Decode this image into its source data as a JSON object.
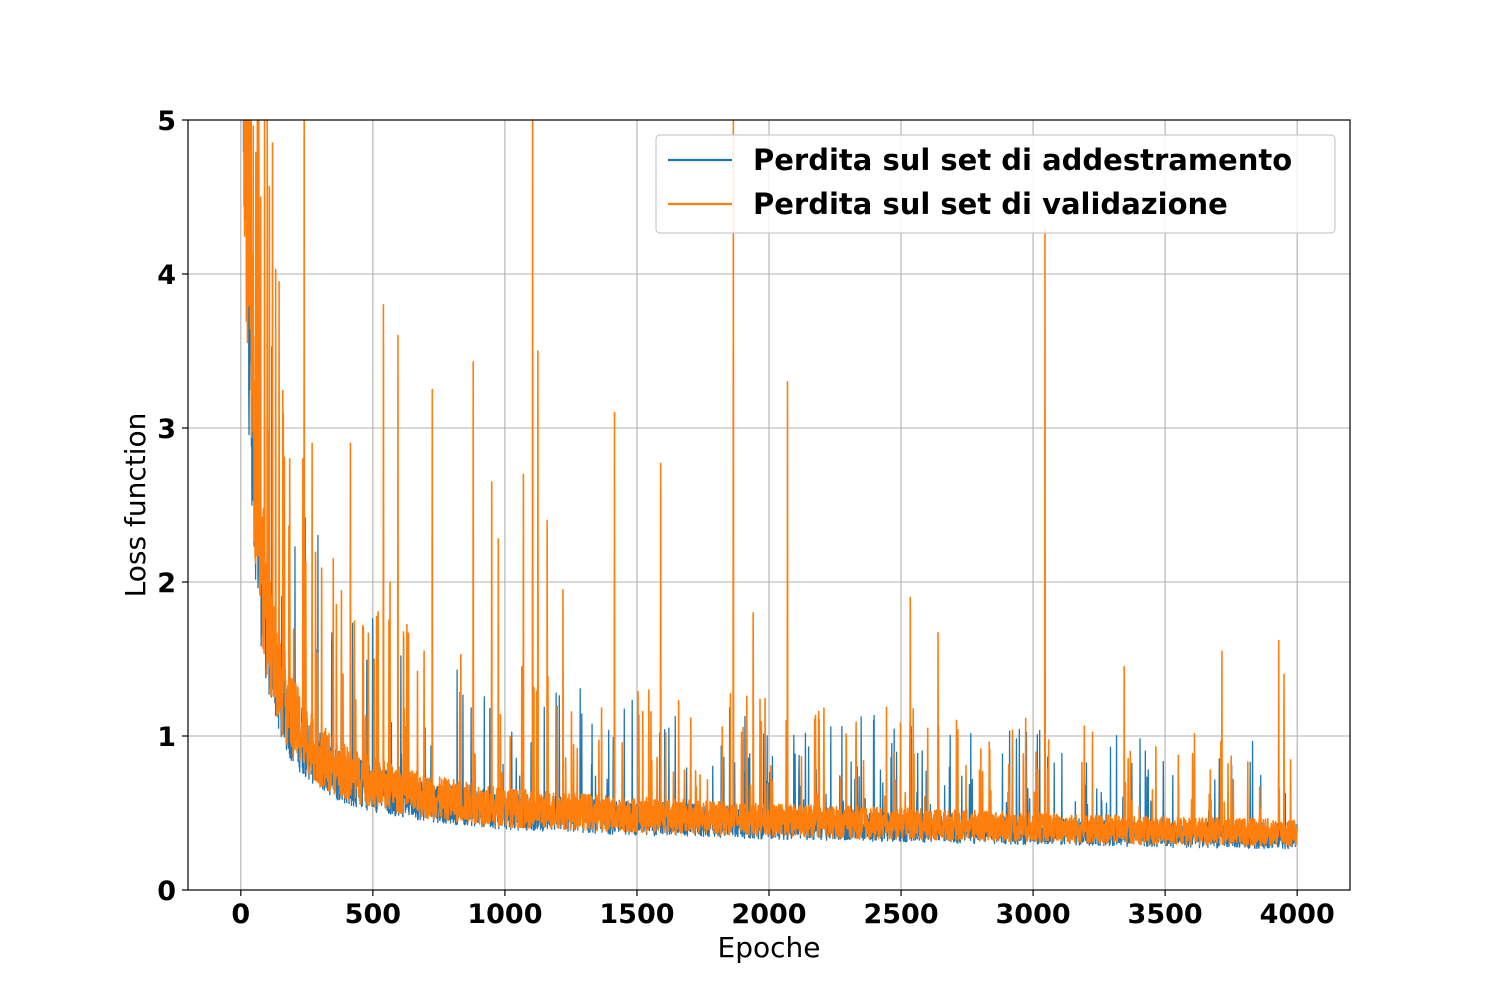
{
  "chart_data": {
    "type": "line",
    "title": "",
    "xlabel": "Epoche",
    "ylabel": "Loss function",
    "xlim": [
      -200,
      4200
    ],
    "ylim": [
      0,
      5
    ],
    "xticks": [
      0,
      500,
      1000,
      1500,
      2000,
      2500,
      3000,
      3500,
      4000
    ],
    "yticks": [
      0,
      1,
      2,
      3,
      4,
      5
    ],
    "grid": true,
    "legend_position": "upper right",
    "series": [
      {
        "name": "Perdita sul set di addestramento",
        "color": "#1f77b4",
        "x": [
          0,
          25,
          50,
          75,
          100,
          150,
          200,
          300,
          400,
          500,
          700,
          1000,
          1500,
          2000,
          2500,
          3000,
          3500,
          4000
        ],
        "y": [
          6.0,
          3.6,
          2.4,
          1.8,
          1.45,
          1.1,
          0.9,
          0.72,
          0.62,
          0.57,
          0.5,
          0.44,
          0.4,
          0.37,
          0.35,
          0.33,
          0.31,
          0.3
        ]
      },
      {
        "name": "Perdita sul set di validazione",
        "color": "#ff7f0e",
        "x": [
          0,
          25,
          50,
          75,
          100,
          150,
          200,
          300,
          400,
          500,
          700,
          1000,
          1500,
          2000,
          2500,
          3000,
          3500,
          4000
        ],
        "y": [
          6.0,
          3.7,
          2.5,
          1.9,
          1.5,
          1.15,
          0.95,
          0.75,
          0.65,
          0.6,
          0.52,
          0.46,
          0.42,
          0.39,
          0.37,
          0.35,
          0.33,
          0.32
        ],
        "spikes": [
          {
            "x": 10,
            "y": 5.0
          },
          {
            "x": 35,
            "y": 5.0
          },
          {
            "x": 60,
            "y": 4.2
          },
          {
            "x": 75,
            "y": 4.5
          },
          {
            "x": 90,
            "y": 5.0
          },
          {
            "x": 100,
            "y": 5.0
          },
          {
            "x": 120,
            "y": 4.85
          },
          {
            "x": 145,
            "y": 3.95
          },
          {
            "x": 185,
            "y": 2.8
          },
          {
            "x": 235,
            "y": 2.8
          },
          {
            "x": 240,
            "y": 5.0
          },
          {
            "x": 270,
            "y": 2.9
          },
          {
            "x": 350,
            "y": 2.15
          },
          {
            "x": 415,
            "y": 2.9
          },
          {
            "x": 540,
            "y": 3.8
          },
          {
            "x": 565,
            "y": 2.0
          },
          {
            "x": 595,
            "y": 3.6
          },
          {
            "x": 725,
            "y": 3.25
          },
          {
            "x": 880,
            "y": 3.43
          },
          {
            "x": 950,
            "y": 2.65
          },
          {
            "x": 975,
            "y": 2.28
          },
          {
            "x": 1070,
            "y": 2.7
          },
          {
            "x": 1105,
            "y": 5.0
          },
          {
            "x": 1125,
            "y": 3.5
          },
          {
            "x": 1160,
            "y": 2.4
          },
          {
            "x": 1220,
            "y": 1.95
          },
          {
            "x": 1415,
            "y": 3.1
          },
          {
            "x": 1590,
            "y": 2.77
          },
          {
            "x": 1865,
            "y": 5.0
          },
          {
            "x": 1940,
            "y": 1.8
          },
          {
            "x": 2070,
            "y": 3.3
          },
          {
            "x": 2535,
            "y": 1.9
          },
          {
            "x": 2640,
            "y": 1.67
          },
          {
            "x": 3045,
            "y": 4.3
          },
          {
            "x": 3345,
            "y": 1.45
          },
          {
            "x": 3715,
            "y": 1.55
          },
          {
            "x": 3930,
            "y": 1.62
          },
          {
            "x": 3950,
            "y": 1.4
          }
        ]
      }
    ]
  }
}
